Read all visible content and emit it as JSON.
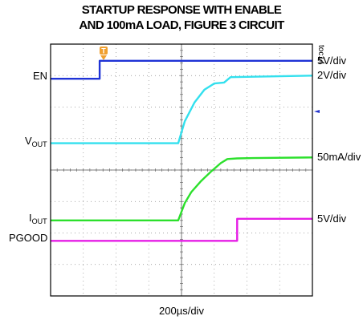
{
  "title_line1": "STARTUP RESPONSE WITH ENABLE",
  "title_line2": "AND 100mA LOAD, FIGURE 3 CIRCUIT",
  "toc_id": "toc14",
  "trigger_marker": "T",
  "time_scale": "200µs/div",
  "chart_data": {
    "type": "line",
    "title": "STARTUP RESPONSE WITH ENABLE AND 100mA LOAD, FIGURE 3 CIRCUIT",
    "xlabel": "200µs/div",
    "grid": true,
    "divisions": {
      "x": 8,
      "y": 8
    },
    "xlim_div": [
      0,
      8
    ],
    "series": [
      {
        "name": "EN",
        "label_main": "EN",
        "label_sub": "",
        "scale": "5V/div",
        "color": "#1f33d6",
        "points": [
          [
            0,
            6.9
          ],
          [
            1.5,
            6.9
          ],
          [
            1.5,
            7.47
          ],
          [
            8,
            7.47
          ]
        ]
      },
      {
        "name": "VOUT",
        "label_main": "V",
        "label_sub": "OUT",
        "scale": "2V/div",
        "color": "#33e0ee",
        "points": [
          [
            0,
            4.85
          ],
          [
            3.9,
            4.85
          ],
          [
            4.1,
            5.55
          ],
          [
            4.4,
            6.15
          ],
          [
            4.7,
            6.55
          ],
          [
            5.0,
            6.75
          ],
          [
            5.3,
            6.78
          ],
          [
            5.5,
            6.95
          ],
          [
            8,
            7.0
          ]
        ]
      },
      {
        "name": "IOUT",
        "label_main": "I",
        "label_sub": "OUT",
        "scale": "50mA/div",
        "color": "#2ce02c",
        "points": [
          [
            0,
            2.4
          ],
          [
            3.9,
            2.4
          ],
          [
            4.1,
            2.95
          ],
          [
            4.3,
            3.3
          ],
          [
            4.6,
            3.65
          ],
          [
            4.9,
            3.95
          ],
          [
            5.2,
            4.22
          ],
          [
            5.4,
            4.35
          ],
          [
            5.7,
            4.37
          ],
          [
            6.2,
            4.38
          ],
          [
            8,
            4.4
          ]
        ]
      },
      {
        "name": "PGOOD",
        "label_main": "PGOOD",
        "label_sub": "",
        "scale": "5V/div",
        "color": "#e61ee6",
        "points": [
          [
            0,
            1.75
          ],
          [
            5.7,
            1.75
          ],
          [
            5.7,
            2.45
          ],
          [
            8,
            2.45
          ]
        ]
      }
    ]
  }
}
